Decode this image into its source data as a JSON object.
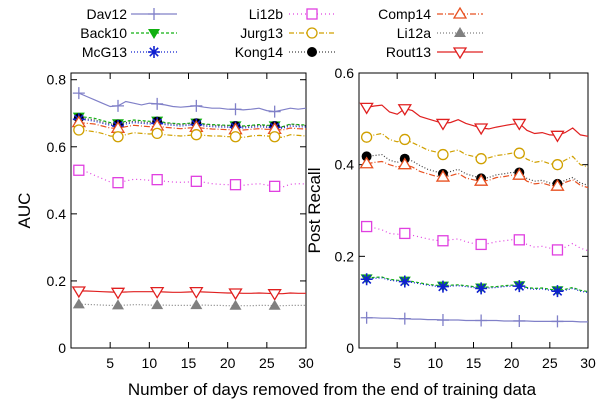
{
  "legend": [
    "Dav12",
    "Li12b",
    "Comp14",
    "Back10",
    "Jurg13",
    "Li12a",
    "McG13",
    "Kong14",
    "Rout13"
  ],
  "shared_xlabel": "Number of days removed from the end of training data",
  "styles": {
    "Dav12": {
      "color": "#8080c8",
      "marker": "plus",
      "dash": ""
    },
    "Li12b": {
      "color": "#e040e0",
      "marker": "square",
      "dash": "1,3"
    },
    "Comp14": {
      "color": "#e85020",
      "marker": "triangle-up",
      "dash": "6,2,1,2"
    },
    "Back10": {
      "color": "#10b010",
      "marker": "triangle-down-filled",
      "dash": "3,2"
    },
    "Jurg13": {
      "color": "#d0a000",
      "marker": "circle",
      "dash": "5,2,1,2"
    },
    "Li12a": {
      "color": "#808080",
      "marker": "triangle-up-filled",
      "dash": "1,2"
    },
    "McG13": {
      "color": "#1020d0",
      "marker": "star",
      "dash": "1,2"
    },
    "Kong14": {
      "color": "#404040",
      "marker": "circle-filled",
      "dash": "1,2"
    },
    "Rout13": {
      "color": "#e02020",
      "marker": "triangle-down",
      "dash": ""
    }
  },
  "chart_data": [
    {
      "type": "line",
      "ylabel": "AUC",
      "xlabel": "",
      "xlim": [
        0,
        30
      ],
      "ylim": [
        0,
        0.82
      ],
      "xticks": [
        5,
        10,
        15,
        20,
        25,
        30
      ],
      "yticks": [
        0,
        0.2,
        0.4,
        0.6,
        0.8
      ],
      "ytick_labels": [
        "0",
        "0.2",
        "0.4",
        "0.6",
        "0.8"
      ],
      "x": [
        1,
        2,
        3,
        4,
        5,
        6,
        7,
        8,
        9,
        10,
        11,
        12,
        13,
        14,
        15,
        16,
        17,
        18,
        19,
        20,
        21,
        22,
        23,
        24,
        25,
        26,
        27,
        28,
        29,
        30
      ],
      "marker_x": [
        1,
        6,
        11,
        16,
        21,
        26
      ],
      "series": [
        {
          "name": "Dav12",
          "values": [
            0.76,
            0.75,
            0.74,
            0.73,
            0.72,
            0.722,
            0.735,
            0.73,
            0.725,
            0.73,
            0.728,
            0.725,
            0.72,
            0.718,
            0.72,
            0.722,
            0.718,
            0.715,
            0.715,
            0.712,
            0.712,
            0.71,
            0.712,
            0.715,
            0.708,
            0.705,
            0.71,
            0.715,
            0.712,
            0.715
          ]
        },
        {
          "name": "Back10",
          "values": [
            0.69,
            0.688,
            0.685,
            0.678,
            0.672,
            0.67,
            0.676,
            0.68,
            0.678,
            0.676,
            0.678,
            0.672,
            0.67,
            0.668,
            0.67,
            0.672,
            0.668,
            0.666,
            0.665,
            0.664,
            0.664,
            0.662,
            0.664,
            0.666,
            0.664,
            0.664,
            0.66,
            0.668,
            0.666,
            0.665
          ]
        },
        {
          "name": "Kong14",
          "values": [
            0.685,
            0.683,
            0.68,
            0.674,
            0.668,
            0.666,
            0.672,
            0.676,
            0.674,
            0.672,
            0.675,
            0.67,
            0.668,
            0.666,
            0.668,
            0.67,
            0.666,
            0.664,
            0.663,
            0.662,
            0.662,
            0.66,
            0.662,
            0.664,
            0.662,
            0.662,
            0.658,
            0.666,
            0.664,
            0.663
          ]
        },
        {
          "name": "McG13",
          "values": [
            0.682,
            0.68,
            0.676,
            0.67,
            0.664,
            0.662,
            0.668,
            0.672,
            0.67,
            0.668,
            0.67,
            0.666,
            0.664,
            0.662,
            0.664,
            0.666,
            0.662,
            0.66,
            0.659,
            0.658,
            0.658,
            0.656,
            0.658,
            0.66,
            0.658,
            0.658,
            0.655,
            0.662,
            0.66,
            0.659
          ]
        },
        {
          "name": "Comp14",
          "values": [
            0.672,
            0.67,
            0.668,
            0.662,
            0.656,
            0.655,
            0.66,
            0.664,
            0.662,
            0.66,
            0.662,
            0.658,
            0.656,
            0.654,
            0.656,
            0.658,
            0.655,
            0.653,
            0.652,
            0.651,
            0.651,
            0.65,
            0.652,
            0.654,
            0.652,
            0.652,
            0.65,
            0.656,
            0.654,
            0.653
          ]
        },
        {
          "name": "Jurg13",
          "values": [
            0.65,
            0.648,
            0.645,
            0.64,
            0.632,
            0.63,
            0.636,
            0.642,
            0.64,
            0.638,
            0.64,
            0.636,
            0.634,
            0.632,
            0.634,
            0.636,
            0.634,
            0.632,
            0.632,
            0.63,
            0.63,
            0.628,
            0.632,
            0.634,
            0.632,
            0.63,
            0.628,
            0.636,
            0.634,
            0.632
          ]
        },
        {
          "name": "Li12b",
          "values": [
            0.53,
            0.525,
            0.515,
            0.505,
            0.495,
            0.493,
            0.498,
            0.503,
            0.502,
            0.5,
            0.502,
            0.497,
            0.495,
            0.494,
            0.495,
            0.497,
            0.494,
            0.49,
            0.488,
            0.487,
            0.487,
            0.485,
            0.488,
            0.49,
            0.486,
            0.482,
            0.48,
            0.488,
            0.49,
            0.489
          ]
        },
        {
          "name": "Rout13",
          "values": [
            0.17,
            0.17,
            0.169,
            0.168,
            0.167,
            0.166,
            0.167,
            0.168,
            0.168,
            0.168,
            0.168,
            0.167,
            0.166,
            0.166,
            0.167,
            0.168,
            0.167,
            0.166,
            0.165,
            0.164,
            0.164,
            0.163,
            0.163,
            0.164,
            0.163,
            0.162,
            0.162,
            0.164,
            0.163,
            0.163
          ]
        },
        {
          "name": "Li12a",
          "values": [
            0.13,
            0.13,
            0.129,
            0.128,
            0.127,
            0.127,
            0.128,
            0.129,
            0.129,
            0.128,
            0.128,
            0.128,
            0.127,
            0.127,
            0.127,
            0.128,
            0.128,
            0.127,
            0.127,
            0.126,
            0.126,
            0.126,
            0.126,
            0.127,
            0.127,
            0.126,
            0.126,
            0.127,
            0.127,
            0.127
          ]
        }
      ]
    },
    {
      "type": "line",
      "ylabel": "Post Recall",
      "xlabel": "",
      "xlim": [
        0,
        30
      ],
      "ylim": [
        0,
        0.6
      ],
      "xticks": [
        5,
        10,
        15,
        20,
        25,
        30
      ],
      "yticks": [
        0,
        0.2,
        0.4,
        0.6
      ],
      "ytick_labels": [
        "0",
        "0.2",
        "0.4",
        "0.6"
      ],
      "x": [
        1,
        2,
        3,
        4,
        5,
        6,
        7,
        8,
        9,
        10,
        11,
        12,
        13,
        14,
        15,
        16,
        17,
        18,
        19,
        20,
        21,
        22,
        23,
        24,
        25,
        26,
        27,
        28,
        29,
        30
      ],
      "marker_x": [
        1,
        6,
        11,
        16,
        21,
        26
      ],
      "series": [
        {
          "name": "Rout13",
          "values": [
            0.525,
            0.528,
            0.53,
            0.515,
            0.51,
            0.522,
            0.518,
            0.505,
            0.5,
            0.495,
            0.49,
            0.492,
            0.498,
            0.49,
            0.485,
            0.48,
            0.478,
            0.482,
            0.485,
            0.488,
            0.49,
            0.475,
            0.468,
            0.47,
            0.465,
            0.464,
            0.47,
            0.48,
            0.465,
            0.462
          ]
        },
        {
          "name": "Jurg13",
          "values": [
            0.46,
            0.465,
            0.468,
            0.455,
            0.45,
            0.455,
            0.448,
            0.44,
            0.432,
            0.428,
            0.422,
            0.428,
            0.432,
            0.422,
            0.418,
            0.413,
            0.415,
            0.42,
            0.422,
            0.425,
            0.425,
            0.412,
            0.405,
            0.408,
            0.402,
            0.4,
            0.41,
            0.418,
            0.4,
            0.395
          ]
        },
        {
          "name": "Kong14",
          "values": [
            0.418,
            0.42,
            0.422,
            0.41,
            0.405,
            0.413,
            0.408,
            0.398,
            0.39,
            0.385,
            0.38,
            0.385,
            0.39,
            0.38,
            0.375,
            0.37,
            0.372,
            0.378,
            0.38,
            0.383,
            0.383,
            0.37,
            0.364,
            0.366,
            0.36,
            0.358,
            0.366,
            0.372,
            0.36,
            0.355
          ]
        },
        {
          "name": "Comp14",
          "values": [
            0.402,
            0.405,
            0.407,
            0.4,
            0.395,
            0.4,
            0.395,
            0.385,
            0.38,
            0.375,
            0.373,
            0.376,
            0.381,
            0.371,
            0.367,
            0.364,
            0.366,
            0.372,
            0.374,
            0.377,
            0.377,
            0.364,
            0.358,
            0.36,
            0.355,
            0.353,
            0.361,
            0.367,
            0.355,
            0.35
          ]
        },
        {
          "name": "Li12b",
          "values": [
            0.265,
            0.262,
            0.258,
            0.25,
            0.248,
            0.25,
            0.246,
            0.242,
            0.238,
            0.235,
            0.234,
            0.236,
            0.238,
            0.232,
            0.228,
            0.226,
            0.228,
            0.232,
            0.234,
            0.236,
            0.236,
            0.226,
            0.22,
            0.222,
            0.218,
            0.214,
            0.22,
            0.228,
            0.218,
            0.212
          ]
        },
        {
          "name": "Back10",
          "values": [
            0.152,
            0.154,
            0.155,
            0.15,
            0.148,
            0.147,
            0.145,
            0.142,
            0.139,
            0.137,
            0.136,
            0.137,
            0.138,
            0.136,
            0.134,
            0.132,
            0.133,
            0.134,
            0.136,
            0.137,
            0.137,
            0.132,
            0.13,
            0.131,
            0.128,
            0.126,
            0.128,
            0.132,
            0.126,
            0.123
          ]
        },
        {
          "name": "McG13",
          "values": [
            0.15,
            0.152,
            0.153,
            0.148,
            0.146,
            0.145,
            0.143,
            0.14,
            0.137,
            0.135,
            0.134,
            0.135,
            0.136,
            0.134,
            0.132,
            0.13,
            0.131,
            0.132,
            0.134,
            0.135,
            0.135,
            0.13,
            0.128,
            0.129,
            0.126,
            0.124,
            0.126,
            0.13,
            0.124,
            0.121
          ]
        },
        {
          "name": "Dav12",
          "values": [
            0.066,
            0.066,
            0.065,
            0.065,
            0.064,
            0.064,
            0.063,
            0.063,
            0.062,
            0.062,
            0.061,
            0.061,
            0.061,
            0.06,
            0.06,
            0.06,
            0.06,
            0.06,
            0.059,
            0.059,
            0.059,
            0.059,
            0.058,
            0.058,
            0.058,
            0.058,
            0.058,
            0.058,
            0.057,
            0.057
          ]
        }
      ]
    }
  ]
}
